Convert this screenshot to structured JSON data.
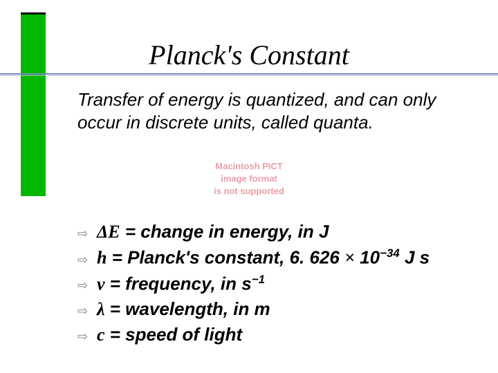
{
  "colors": {
    "green_bar": "#00b800",
    "underline_top": "#7a88c0",
    "underline_bottom": "#b8c0d8",
    "bullet": "#808080",
    "text": "#000000",
    "pict_err": "#e8a0a8",
    "background": "#ffffff"
  },
  "title": "Planck's Constant",
  "intro": "Transfer of energy is quantized, and can only occur in discrete units, called quanta.",
  "pict_error": {
    "line1": "Macintosh PICT",
    "line2": "image format",
    "line3": "is not supported"
  },
  "bullets": {
    "glyph": "⇨"
  },
  "items": [
    {
      "symbol": "ΔE",
      "text": " = change in energy, in J"
    },
    {
      "symbol": "h",
      "text_pre": " = Planck's constant, 6. 626 ",
      "times": "×",
      "exp_base": " 10",
      "exp_sup": "−34",
      "text_post": " J s"
    },
    {
      "symbol": "ν",
      "text_pre": " = frequency, in s",
      "exp_sup": "−1"
    },
    {
      "symbol": "λ",
      "text": " = wavelength, in m"
    },
    {
      "symbol": "c",
      "text": " = speed of light"
    }
  ]
}
